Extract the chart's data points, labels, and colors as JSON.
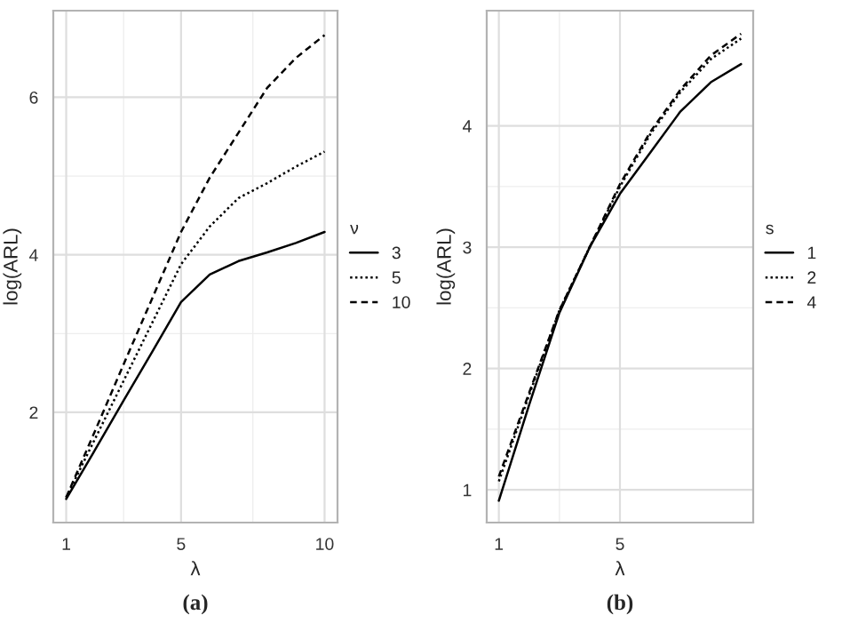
{
  "chart_data": [
    {
      "type": "line",
      "xlabel": "λ",
      "ylabel": "log(ARL)",
      "legend_title": "ν",
      "legend": "right",
      "grid": true,
      "x": [
        1,
        2,
        3,
        4,
        5,
        6,
        7,
        8,
        9,
        10
      ],
      "xlim": [
        0.55,
        10.45
      ],
      "xticks": [
        1,
        5,
        10
      ],
      "ylim": [
        0.6,
        7.1
      ],
      "yticks": [
        2,
        4,
        6
      ],
      "series": [
        {
          "name": "3",
          "color": "#000000",
          "line_style": "solid",
          "values": [
            0.9,
            1.52,
            2.15,
            2.77,
            3.4,
            3.75,
            3.92,
            4.03,
            4.15,
            4.29
          ]
        },
        {
          "name": "5",
          "color": "#000000",
          "line_style": "dotted",
          "values": [
            0.92,
            1.66,
            2.4,
            3.14,
            3.88,
            4.36,
            4.72,
            4.91,
            5.12,
            5.31
          ]
        },
        {
          "name": "10",
          "color": "#000000",
          "line_style": "dashed",
          "values": [
            0.92,
            1.76,
            2.61,
            3.45,
            4.29,
            4.98,
            5.55,
            6.12,
            6.5,
            6.79
          ]
        }
      ],
      "annotations": [
        "(a)"
      ]
    },
    {
      "type": "line",
      "xlabel": "λ",
      "ylabel": "log(ARL)",
      "legend_title": "s",
      "legend": "right",
      "grid": true,
      "x": [
        1,
        2,
        3,
        4,
        5,
        6,
        7,
        8,
        9
      ],
      "xlim": [
        0.6,
        9.4
      ],
      "xticks": [
        1,
        5
      ],
      "ylim": [
        0.73,
        4.95
      ],
      "yticks": [
        1,
        2,
        3,
        4
      ],
      "series": [
        {
          "name": "1",
          "color": "#000000",
          "line_style": "solid",
          "values": [
            0.91,
            1.7,
            2.46,
            3.0,
            3.44,
            3.78,
            4.12,
            4.36,
            4.51
          ]
        },
        {
          "name": "2",
          "color": "#000000",
          "line_style": "dotted",
          "values": [
            1.07,
            1.78,
            2.48,
            3.0,
            3.5,
            3.93,
            4.28,
            4.55,
            4.72
          ]
        },
        {
          "name": "4",
          "color": "#000000",
          "line_style": "dashed",
          "values": [
            1.11,
            1.8,
            2.48,
            3.0,
            3.52,
            3.95,
            4.3,
            4.58,
            4.76
          ]
        }
      ],
      "annotations": [
        "(b)"
      ]
    }
  ]
}
